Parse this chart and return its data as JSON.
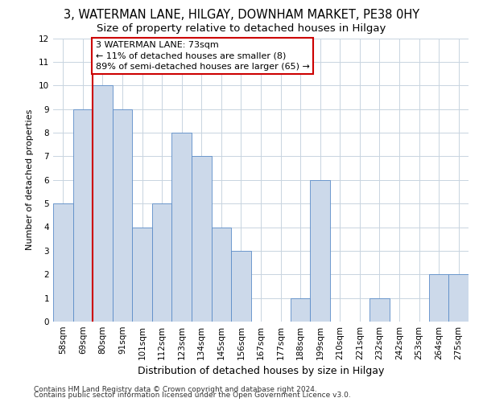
{
  "title1": "3, WATERMAN LANE, HILGAY, DOWNHAM MARKET, PE38 0HY",
  "title2": "Size of property relative to detached houses in Hilgay",
  "xlabel": "Distribution of detached houses by size in Hilgay",
  "ylabel": "Number of detached properties",
  "categories": [
    "58sqm",
    "69sqm",
    "80sqm",
    "91sqm",
    "101sqm",
    "112sqm",
    "123sqm",
    "134sqm",
    "145sqm",
    "156sqm",
    "167sqm",
    "177sqm",
    "188sqm",
    "199sqm",
    "210sqm",
    "221sqm",
    "232sqm",
    "242sqm",
    "253sqm",
    "264sqm",
    "275sqm"
  ],
  "values": [
    5,
    9,
    10,
    9,
    4,
    5,
    8,
    7,
    4,
    3,
    0,
    0,
    1,
    6,
    0,
    0,
    1,
    0,
    0,
    2,
    2
  ],
  "bar_color": "#ccd9ea",
  "bar_edge_color": "#5b8cc8",
  "annotation_text": "3 WATERMAN LANE: 73sqm\n← 11% of detached houses are smaller (8)\n89% of semi-detached houses are larger (65) →",
  "annotation_box_color": "#ffffff",
  "annotation_box_edge_color": "#cc0000",
  "ylim": [
    0,
    12
  ],
  "yticks": [
    0,
    1,
    2,
    3,
    4,
    5,
    6,
    7,
    8,
    9,
    10,
    11,
    12
  ],
  "grid_color": "#c8d4e0",
  "footer1": "Contains HM Land Registry data © Crown copyright and database right 2024.",
  "footer2": "Contains public sector information licensed under the Open Government Licence v3.0.",
  "title1_fontsize": 10.5,
  "title2_fontsize": 9.5,
  "xlabel_fontsize": 9,
  "ylabel_fontsize": 8,
  "tick_fontsize": 7.5,
  "annotation_fontsize": 8,
  "footer_fontsize": 6.5
}
